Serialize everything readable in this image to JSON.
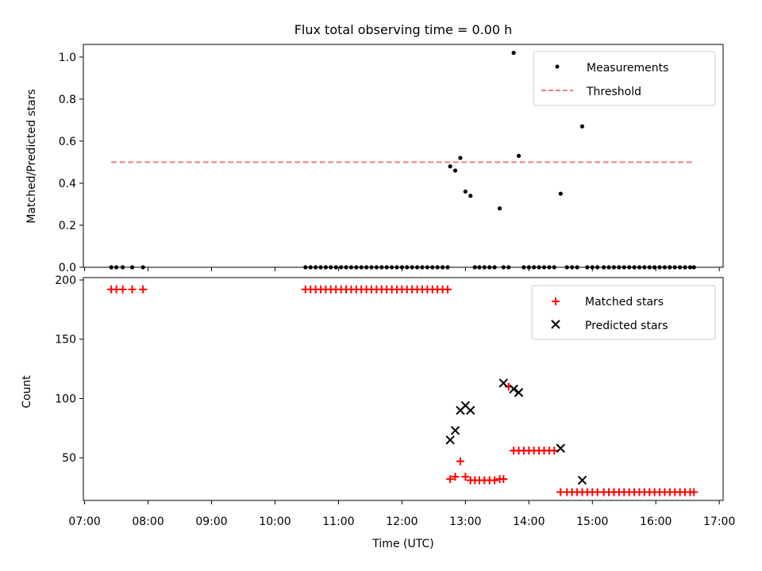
{
  "chart_data": [
    {
      "type": "scatter",
      "title": "Flux total observing time = 0.00 h",
      "xlabel": "",
      "ylabel": "Matched/Predicted stars",
      "xlim": [
        6.98,
        17.06
      ],
      "ylim": [
        0.0,
        1.06
      ],
      "yticks": [
        0.0,
        0.2,
        0.4,
        0.6,
        0.8,
        1.0
      ],
      "ytick_labels": [
        "0.0",
        "0.2",
        "0.4",
        "0.6",
        "0.8",
        "1.0"
      ],
      "legend_position": "top-right",
      "series": [
        {
          "name": "Measurements",
          "marker": "dot",
          "color": "#000000",
          "x": [
            7.42,
            7.5,
            7.6,
            7.75,
            7.92,
            10.48,
            10.56,
            10.64,
            10.72,
            10.8,
            10.88,
            10.96,
            11.04,
            11.12,
            11.2,
            11.28,
            11.36,
            11.44,
            11.52,
            11.6,
            11.68,
            11.76,
            11.84,
            11.92,
            12.0,
            12.08,
            12.16,
            12.24,
            12.32,
            12.4,
            12.48,
            12.56,
            12.64,
            12.72,
            12.76,
            12.84,
            12.92,
            13.0,
            13.08,
            13.15,
            13.22,
            13.3,
            13.38,
            13.46,
            13.54,
            13.6,
            13.68,
            13.76,
            13.84,
            13.92,
            14.0,
            14.08,
            14.16,
            14.24,
            14.32,
            14.4,
            14.5,
            14.6,
            14.68,
            14.76,
            14.84,
            14.92,
            15.0,
            15.08,
            15.18,
            15.26,
            15.34,
            15.42,
            15.5,
            15.58,
            15.66,
            15.74,
            15.82,
            15.9,
            15.98,
            16.06,
            16.14,
            16.22,
            16.3,
            16.38,
            16.46,
            16.54,
            16.6
          ],
          "y": [
            0,
            0,
            0,
            0,
            0,
            0,
            0,
            0,
            0,
            0,
            0,
            0,
            0,
            0,
            0,
            0,
            0,
            0,
            0,
            0,
            0,
            0,
            0,
            0,
            0,
            0,
            0,
            0,
            0,
            0,
            0,
            0,
            0,
            0,
            0.48,
            0.46,
            0.52,
            0.36,
            0.34,
            0,
            0,
            0,
            0,
            0,
            0.28,
            0,
            0,
            1.02,
            0.53,
            0,
            0,
            0,
            0,
            0,
            0,
            0,
            0.35,
            0,
            0,
            0,
            0.67,
            0,
            0,
            0,
            0,
            0,
            0,
            0,
            0,
            0,
            0,
            0,
            0,
            0,
            0,
            0,
            0,
            0,
            0,
            0,
            0,
            0,
            0
          ]
        },
        {
          "name": "Threshold",
          "marker": "dashed-line",
          "color": "#f07c7c",
          "x": [
            7.42,
            16.6
          ],
          "y": [
            0.5,
            0.5
          ]
        }
      ]
    },
    {
      "type": "scatter",
      "title": "",
      "xlabel": "Time (UTC)",
      "ylabel": "Count",
      "xlim": [
        6.98,
        17.06
      ],
      "ylim": [
        14,
        202
      ],
      "yticks": [
        50,
        100,
        150,
        200
      ],
      "ytick_labels": [
        "50",
        "100",
        "150",
        "200"
      ],
      "xticks": [
        7,
        8,
        9,
        10,
        11,
        12,
        13,
        14,
        15,
        16,
        17
      ],
      "xtick_labels": [
        "07:00",
        "08:00",
        "09:00",
        "10:00",
        "11:00",
        "12:00",
        "13:00",
        "14:00",
        "15:00",
        "16:00",
        "17:00"
      ],
      "legend_position": "top-right",
      "series": [
        {
          "name": "Matched stars",
          "marker": "plus",
          "color": "#ff0000",
          "x": [
            7.42,
            7.5,
            7.6,
            7.75,
            7.92,
            10.48,
            10.56,
            10.64,
            10.72,
            10.8,
            10.88,
            10.96,
            11.04,
            11.12,
            11.2,
            11.28,
            11.36,
            11.44,
            11.52,
            11.6,
            11.68,
            11.76,
            11.84,
            11.92,
            12.0,
            12.08,
            12.16,
            12.24,
            12.32,
            12.4,
            12.48,
            12.56,
            12.64,
            12.72,
            12.76,
            12.84,
            12.92,
            13.0,
            13.08,
            13.15,
            13.22,
            13.3,
            13.38,
            13.46,
            13.54,
            13.6,
            13.68,
            13.76,
            13.84,
            13.92,
            14.0,
            14.08,
            14.16,
            14.24,
            14.32,
            14.4,
            14.5,
            14.6,
            14.68,
            14.76,
            14.84,
            14.92,
            15.0,
            15.08,
            15.18,
            15.26,
            15.34,
            15.42,
            15.5,
            15.58,
            15.66,
            15.74,
            15.82,
            15.9,
            15.98,
            16.06,
            16.14,
            16.22,
            16.3,
            16.38,
            16.46,
            16.54,
            16.6
          ],
          "y": [
            192,
            192,
            192,
            192,
            192,
            192,
            192,
            192,
            192,
            192,
            192,
            192,
            192,
            192,
            192,
            192,
            192,
            192,
            192,
            192,
            192,
            192,
            192,
            192,
            192,
            192,
            192,
            192,
            192,
            192,
            192,
            192,
            192,
            192,
            32,
            34,
            47,
            34,
            31,
            31,
            31,
            31,
            31,
            31,
            32,
            32,
            110,
            56,
            56,
            56,
            56,
            56,
            56,
            56,
            56,
            56,
            21,
            21,
            21,
            21,
            21,
            21,
            21,
            21,
            21,
            21,
            21,
            21,
            21,
            21,
            21,
            21,
            21,
            21,
            21,
            21,
            21,
            21,
            21,
            21,
            21,
            21,
            21
          ]
        },
        {
          "name": "Predicted stars",
          "marker": "x",
          "color": "#000000",
          "x": [
            12.76,
            12.84,
            12.92,
            13.0,
            13.08,
            13.6,
            13.76,
            13.84,
            14.5,
            14.84
          ],
          "y": [
            65,
            73,
            90,
            94,
            90,
            113,
            108,
            105,
            58,
            31
          ]
        }
      ]
    }
  ]
}
